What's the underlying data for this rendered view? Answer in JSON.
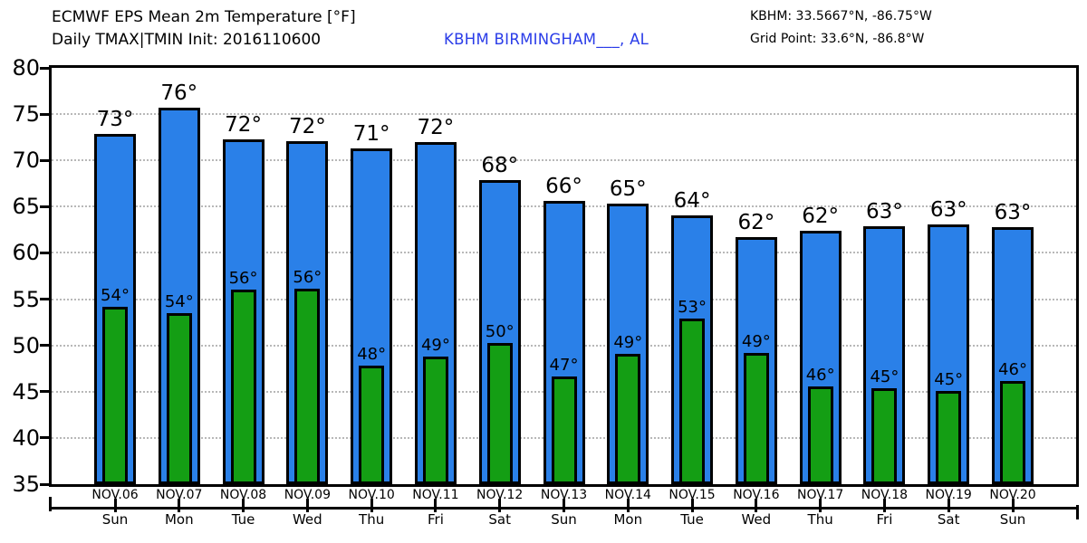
{
  "header": {
    "title_line1": "ECMWF EPS Mean 2m Temperature [°F]",
    "title_line2": "Daily TMAX|TMIN Init: 2016110600",
    "station_link": "KBHM BIRMINGHAM___, AL",
    "station_info_line1": "KBHM: 33.5667°N, -86.75°W",
    "station_info_line2": "Grid Point: 33.6°N, -86.8°W"
  },
  "colors": {
    "tmax_bar": "#2a80e8",
    "tmin_bar": "#149e14",
    "station_link_blue": "#2a3ce8",
    "gridline": "#b8b8b8",
    "axis": "#000000"
  },
  "chart_data": {
    "type": "bar",
    "title": "ECMWF EPS Mean 2m Temperature [°F]",
    "subtitle": "Daily TMAX|TMIN Init: 2016110600",
    "station": "KBHM BIRMINGHAM___, AL",
    "ylim": [
      35,
      80
    ],
    "ytick_interval": 5,
    "yticks": [
      80,
      75,
      70,
      65,
      60,
      55,
      50,
      45,
      40,
      35
    ],
    "grid": "horizontal-dotted",
    "legend_position": "none",
    "categories_date": [
      "NOV.06",
      "NOV.07",
      "NOV.08",
      "NOV.09",
      "NOV.10",
      "NOV.11",
      "NOV.12",
      "NOV.13",
      "NOV.14",
      "NOV.15",
      "NOV.16",
      "NOV.17",
      "NOV.18",
      "NOV.19",
      "NOV.20"
    ],
    "categories_weekday": [
      "Sun",
      "Mon",
      "Tue",
      "Wed",
      "Thu",
      "Fri",
      "Sat",
      "Sun",
      "Mon",
      "Tue",
      "Wed",
      "Thu",
      "Fri",
      "Sat",
      "Sun"
    ],
    "series": [
      {
        "name": "TMAX",
        "color": "#2a80e8",
        "labels": [
          "73°",
          "76°",
          "72°",
          "72°",
          "71°",
          "72°",
          "68°",
          "66°",
          "65°",
          "64°",
          "62°",
          "62°",
          "63°",
          "63°",
          "63°"
        ],
        "values": [
          72.9,
          75.7,
          72.3,
          72.1,
          71.3,
          72.0,
          67.9,
          65.6,
          65.3,
          64.1,
          61.7,
          62.4,
          62.9,
          63.1,
          62.8
        ]
      },
      {
        "name": "TMIN",
        "color": "#149e14",
        "labels": [
          "54°",
          "54°",
          "56°",
          "56°",
          "48°",
          "49°",
          "50°",
          "47°",
          "49°",
          "53°",
          "49°",
          "46°",
          "45°",
          "45°",
          "46°"
        ],
        "values": [
          54.2,
          53.5,
          56.0,
          56.1,
          47.8,
          48.8,
          50.3,
          46.6,
          49.1,
          52.9,
          49.2,
          45.6,
          45.4,
          45.1,
          46.2
        ]
      }
    ]
  }
}
